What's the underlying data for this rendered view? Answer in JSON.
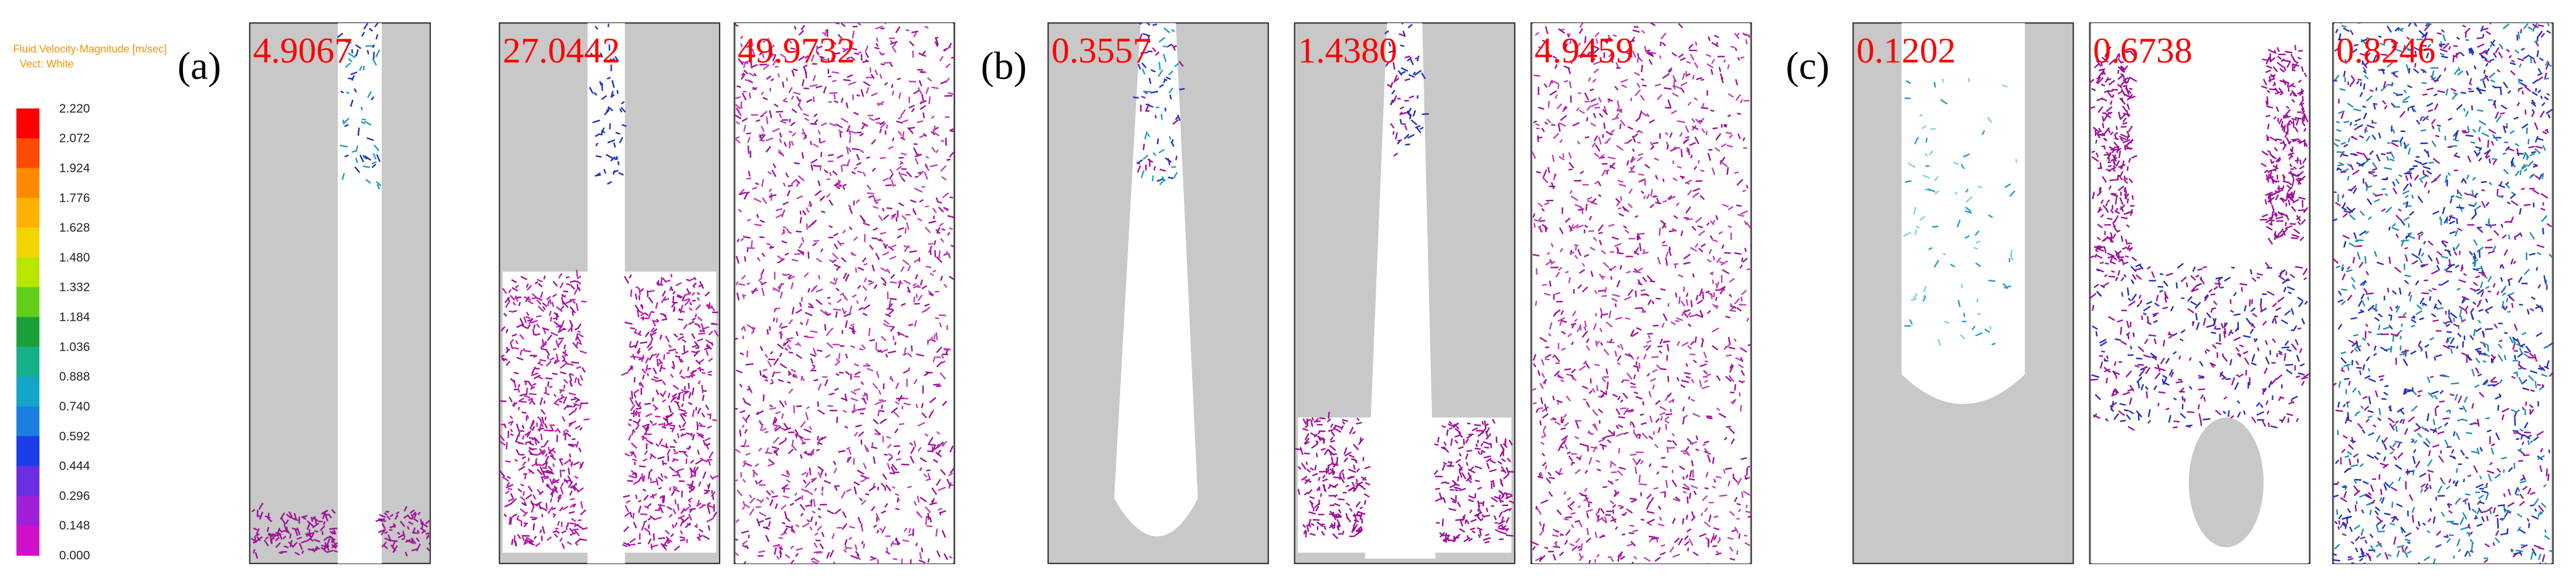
{
  "legend": {
    "title": "Fluid.Velocity-Magnitude [m/sec]",
    "subtitle": "Vect: White",
    "ticks": [
      "2.220",
      "2.072",
      "1.924",
      "1.776",
      "1.628",
      "1.480",
      "1.332",
      "1.184",
      "1.036",
      "0.888",
      "0.740",
      "0.592",
      "0.444",
      "0.296",
      "0.148",
      "0.000"
    ]
  },
  "groups": [
    {
      "label": "(a)",
      "panels": [
        {
          "time": "4.9067"
        },
        {
          "time": "27.0442"
        },
        {
          "time": "49.9732"
        }
      ]
    },
    {
      "label": "(b)",
      "panels": [
        {
          "time": "0.3557"
        },
        {
          "time": "1.4380"
        },
        {
          "time": "4.9459"
        }
      ]
    },
    {
      "label": "(c)",
      "panels": [
        {
          "time": "0.1202"
        },
        {
          "time": "0.6738"
        },
        {
          "time": "0.8246"
        }
      ]
    }
  ]
}
